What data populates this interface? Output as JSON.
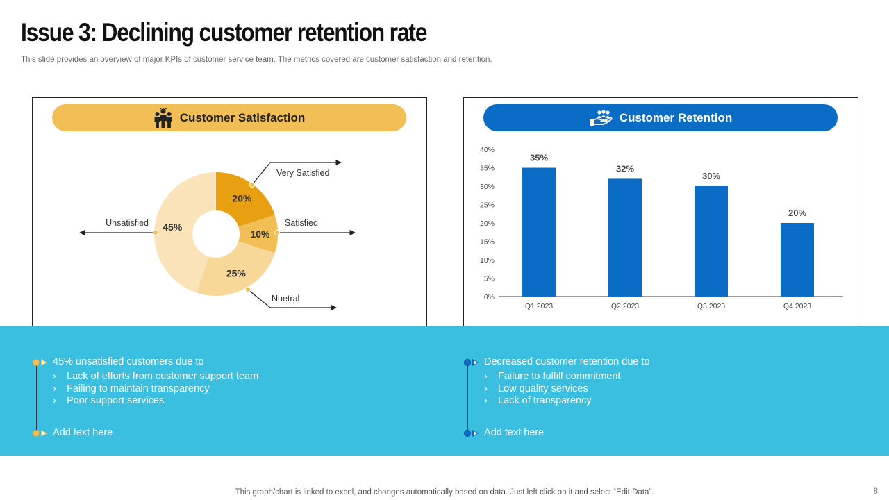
{
  "title": "Issue 3: Declining customer retention rate",
  "subtitle": "This slide provides an overview of major KPIs of customer service team. The metrics covered are customer satisfaction and retention.",
  "colors": {
    "yellow": "#f2bf57",
    "blue": "#0a6cc4",
    "band": "#3bbfe0"
  },
  "satisfaction": {
    "heading": "Customer Satisfaction",
    "icon": "people-group-icon"
  },
  "retention": {
    "heading": "Customer Retention",
    "icon": "hand-people-icon"
  },
  "chart_data": [
    {
      "type": "pie",
      "donut": true,
      "title": "",
      "slices": [
        {
          "label": "Very Satisfied",
          "value": 20,
          "value_label": "20%",
          "color": "#e8a012"
        },
        {
          "label": "Satisfied",
          "value": 10,
          "value_label": "10%",
          "color": "#f2bf57"
        },
        {
          "label": "Nuetral",
          "value": 25,
          "value_label": "25%",
          "color": "#f7d898"
        },
        {
          "label": "Unsatisfied",
          "value": 45,
          "value_label": "45%",
          "color": "#fae3b8"
        }
      ]
    },
    {
      "type": "bar",
      "title": "",
      "categories": [
        "Q1 2023",
        "Q2 2023",
        "Q3 2023",
        "Q4 2023"
      ],
      "values": [
        35,
        32,
        30,
        20
      ],
      "value_labels": [
        "35%",
        "32%",
        "30%",
        "20%"
      ],
      "ylim": [
        0,
        40
      ],
      "yticks": [
        "0%",
        "5%",
        "10%",
        "15%",
        "20%",
        "25%",
        "30%",
        "35%",
        "40%"
      ],
      "color": "#0a6cc4",
      "grid": false,
      "xlabel": "",
      "ylabel": ""
    }
  ],
  "notes": {
    "left": {
      "heading": "45% unsatisfied customers due to",
      "items": [
        "Lack of efforts from customer support team",
        "Failing to maintain transparency",
        "Poor support services"
      ],
      "footer": "Add text here"
    },
    "right": {
      "heading": "Decreased customer retention due to",
      "items": [
        "Failure to fulfill commitment",
        "Low quality services",
        "Lack of transparency"
      ],
      "footer": "Add text here"
    }
  },
  "footer_note": "This graph/chart is linked to excel,  and changes automatically based on data. Just left click on it and select “Edit Data”.",
  "page_number": "8"
}
